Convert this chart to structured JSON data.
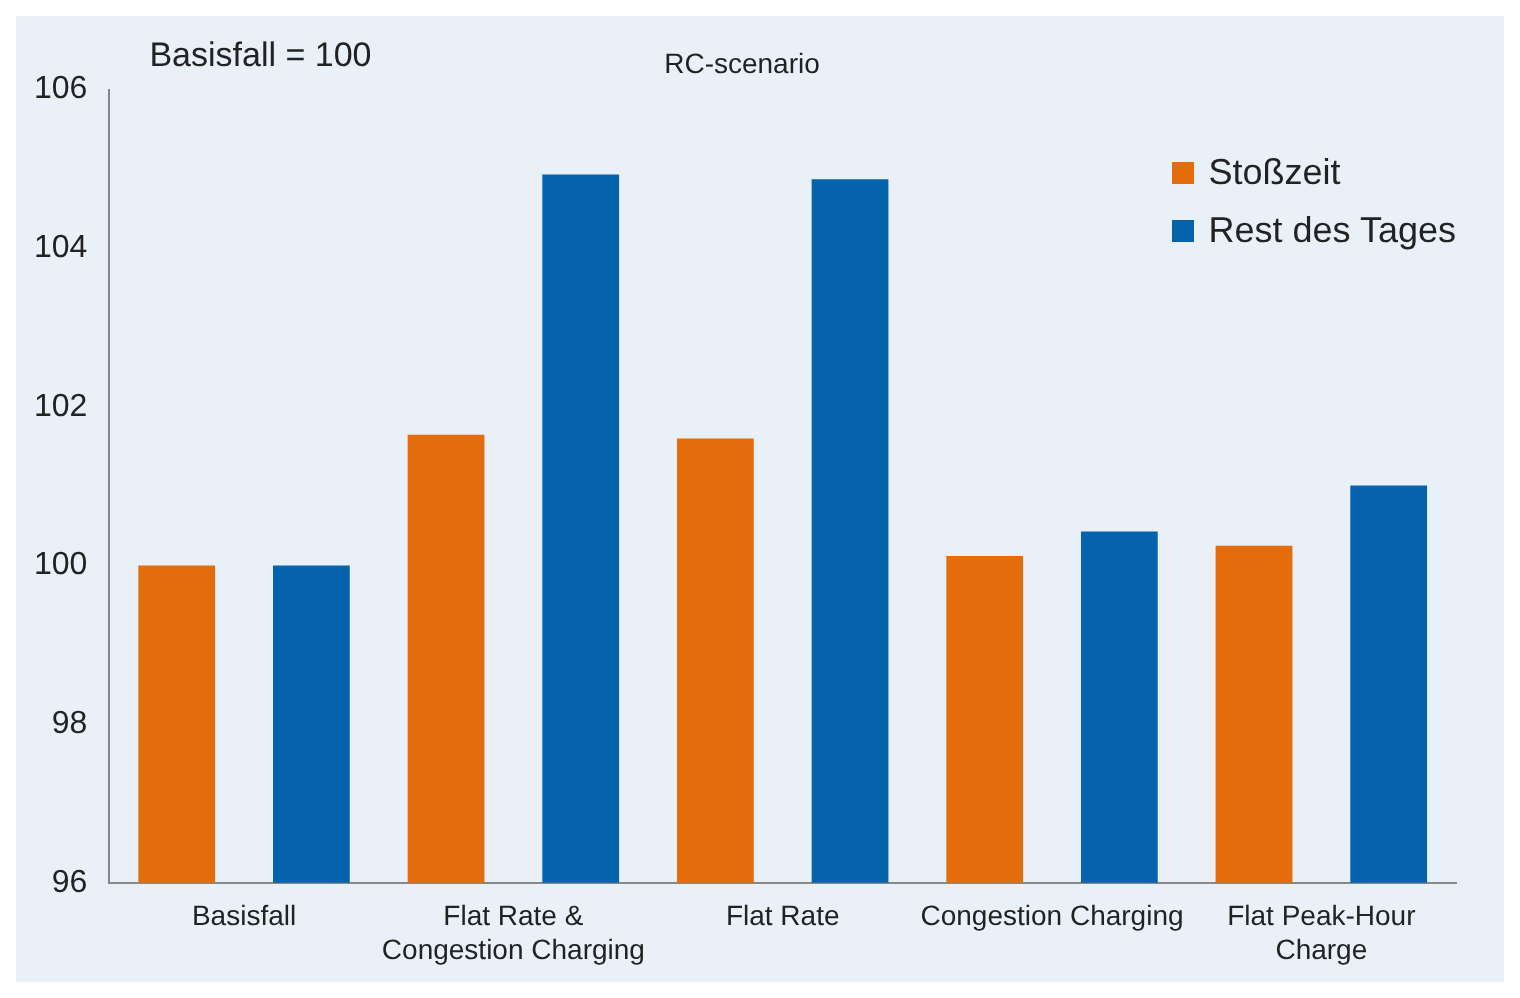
{
  "chart_data": {
    "type": "bar",
    "title": "RC-scenario",
    "annotations": [
      "Basisfall = 100"
    ],
    "categories": [
      "Basisfall",
      "Flat Rate & Congestion Charging",
      "Flat Rate",
      "Congestion Charging",
      "Flat Peak-Hour Charge"
    ],
    "series": [
      {
        "name": "Stoßzeit",
        "color": "#e46c0a",
        "values": [
          100,
          101.65,
          101.6,
          100.12,
          100.25
        ]
      },
      {
        "name": "Rest des Tages",
        "color": "#0563ad",
        "values": [
          100,
          104.93,
          104.87,
          100.43,
          101.01
        ]
      }
    ],
    "ylim": [
      96,
      106
    ],
    "yticks": [
      96,
      98,
      100,
      102,
      104,
      106
    ],
    "grid": false,
    "legend": "top right"
  }
}
